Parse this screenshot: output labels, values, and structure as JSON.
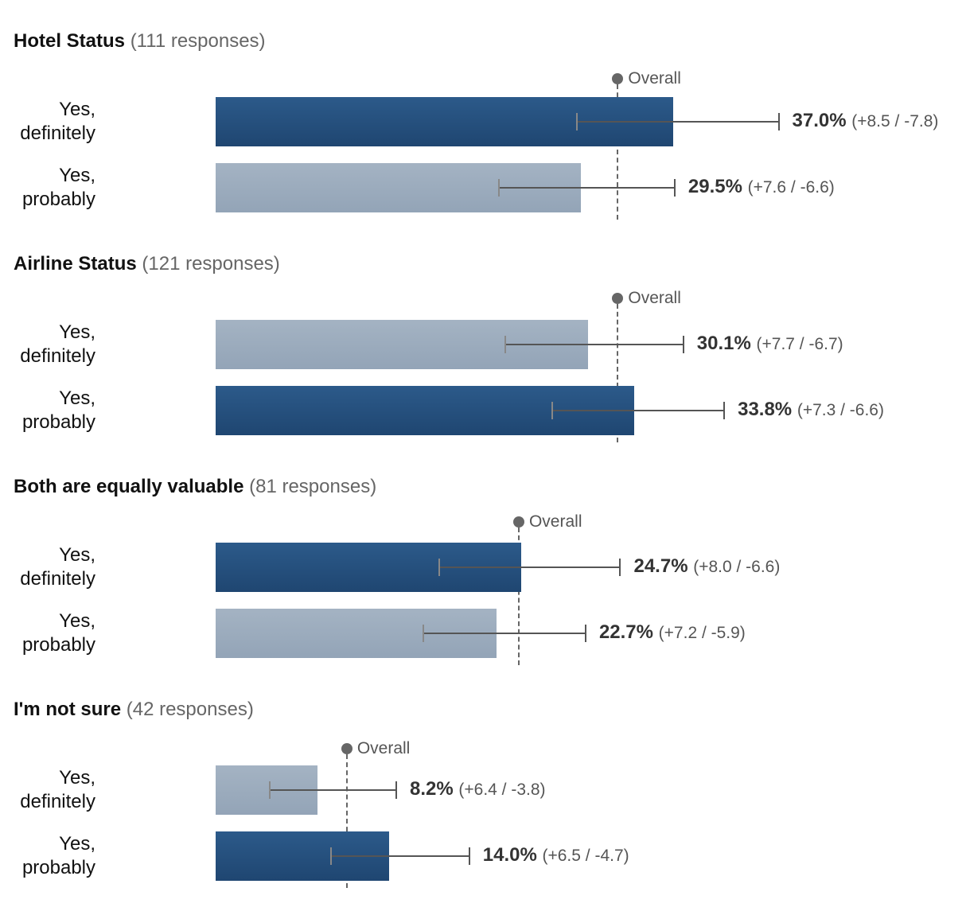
{
  "overall_label": "Overall",
  "chart_data": {
    "type": "bar",
    "orientation": "horizontal",
    "unit": "%",
    "colors": {
      "highlight": "#24507e",
      "default": "#9aaabd",
      "error_bar": "#555555",
      "overall_marker": "#666666"
    },
    "groups": [
      {
        "name": "Hotel Status",
        "responses": "(111 responses)",
        "overall": 32.5,
        "rows": [
          {
            "label_line1": "Yes,",
            "label_line2": "definitely",
            "value": 37.0,
            "value_text": "37.0%",
            "ci_plus": 8.5,
            "ci_minus": 7.8,
            "ci_text": "(+8.5 / -7.8)",
            "highlight": true
          },
          {
            "label_line1": "Yes,",
            "label_line2": "probably",
            "value": 29.5,
            "value_text": "29.5%",
            "ci_plus": 7.6,
            "ci_minus": 6.6,
            "ci_text": "(+7.6 / -6.6)",
            "highlight": false
          }
        ]
      },
      {
        "name": "Airline Status",
        "responses": "(121 responses)",
        "overall": 32.5,
        "rows": [
          {
            "label_line1": "Yes,",
            "label_line2": "definitely",
            "value": 30.1,
            "value_text": "30.1%",
            "ci_plus": 7.7,
            "ci_minus": 6.7,
            "ci_text": "(+7.7 / -6.7)",
            "highlight": false
          },
          {
            "label_line1": "Yes,",
            "label_line2": "probably",
            "value": 33.8,
            "value_text": "33.8%",
            "ci_plus": 7.3,
            "ci_minus": 6.6,
            "ci_text": "(+7.3 / -6.6)",
            "highlight": true
          }
        ]
      },
      {
        "name": "Both are equally valuable",
        "responses": "(81 responses)",
        "overall": 24.5,
        "rows": [
          {
            "label_line1": "Yes,",
            "label_line2": "definitely",
            "value": 24.7,
            "value_text": "24.7%",
            "ci_plus": 8.0,
            "ci_minus": 6.6,
            "ci_text": "(+8.0 / -6.6)",
            "highlight": true
          },
          {
            "label_line1": "Yes,",
            "label_line2": "probably",
            "value": 22.7,
            "value_text": "22.7%",
            "ci_plus": 7.2,
            "ci_minus": 5.9,
            "ci_text": "(+7.2 / -5.9)",
            "highlight": false
          }
        ]
      },
      {
        "name": "I'm not sure",
        "responses": "(42 responses)",
        "overall": 10.6,
        "rows": [
          {
            "label_line1": "Yes,",
            "label_line2": "definitely",
            "value": 8.2,
            "value_text": "8.2%",
            "ci_plus": 6.4,
            "ci_minus": 3.8,
            "ci_text": "(+6.4 / -3.8)",
            "highlight": false
          },
          {
            "label_line1": "Yes,",
            "label_line2": "probably",
            "value": 14.0,
            "value_text": "14.0%",
            "ci_plus": 6.5,
            "ci_minus": 4.7,
            "ci_text": "(+6.5 / -4.7)",
            "highlight": true
          }
        ]
      }
    ]
  }
}
